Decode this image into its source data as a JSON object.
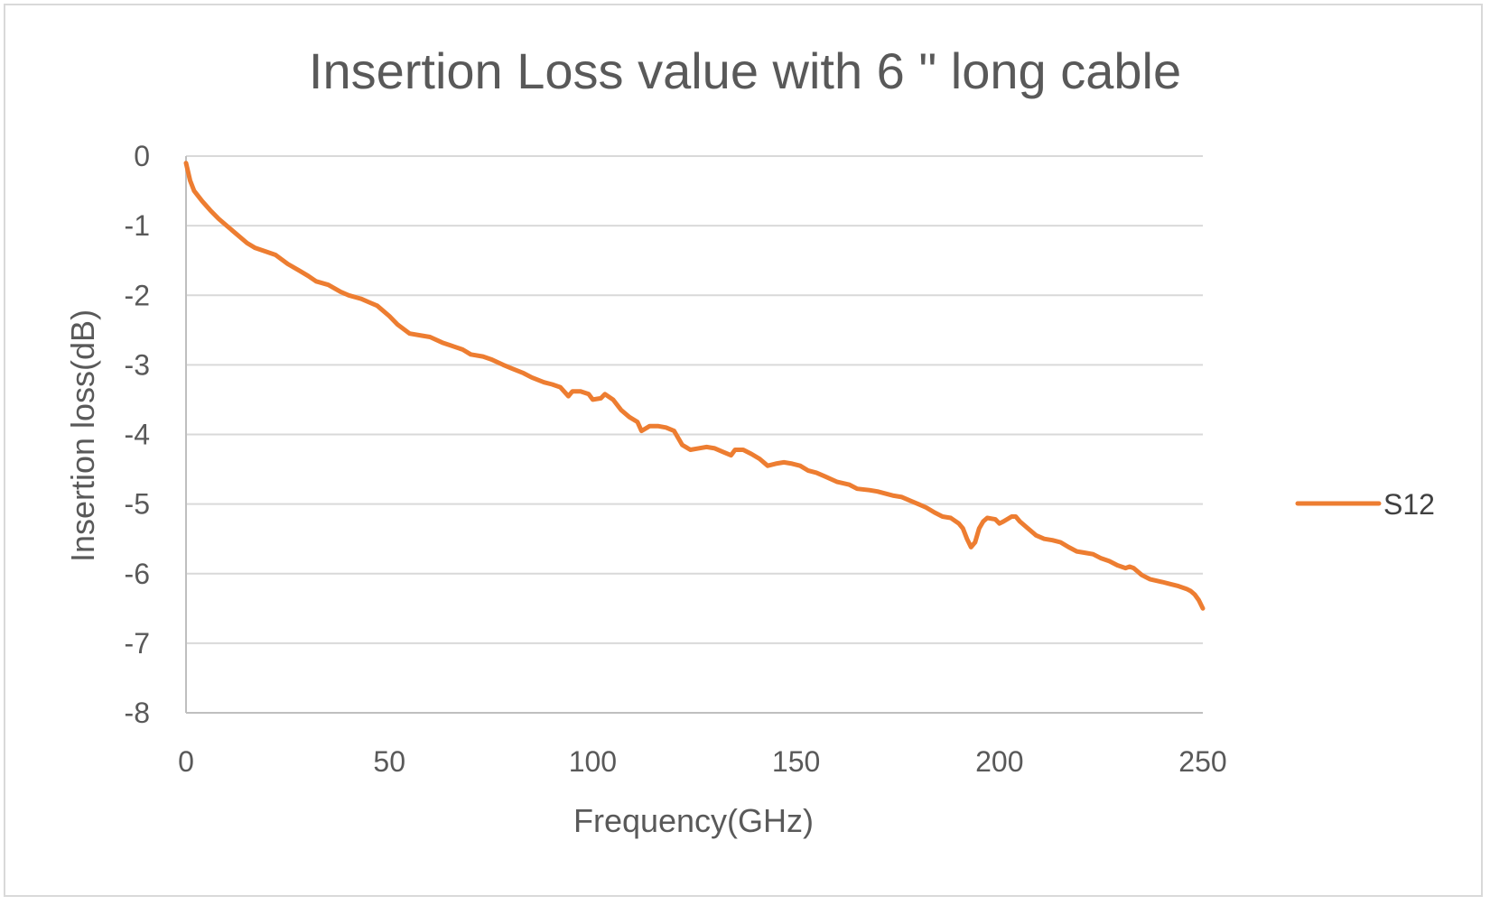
{
  "chart_data": {
    "type": "line",
    "title": "Insertion Loss value with 6 \" long cable",
    "xlabel": "Frequency(GHz)",
    "ylabel": "Insertion loss(dB)",
    "xlim": [
      0,
      250
    ],
    "ylim": [
      -8,
      0
    ],
    "x_ticks": [
      "0",
      "50",
      "100",
      "150",
      "200",
      "250"
    ],
    "y_ticks": [
      "0",
      "-1",
      "-2",
      "-3",
      "-4",
      "-5",
      "-6",
      "-7",
      "-8"
    ],
    "grid": true,
    "legend": "right",
    "series": [
      {
        "name": "S12",
        "color": "#ED7D31",
        "points": [
          [
            0,
            -0.1
          ],
          [
            1,
            -0.35
          ],
          [
            2,
            -0.5
          ],
          [
            4,
            -0.65
          ],
          [
            6,
            -0.78
          ],
          [
            8,
            -0.9
          ],
          [
            10,
            -1.0
          ],
          [
            12,
            -1.1
          ],
          [
            15,
            -1.25
          ],
          [
            17,
            -1.32
          ],
          [
            20,
            -1.38
          ],
          [
            22,
            -1.42
          ],
          [
            25,
            -1.55
          ],
          [
            28,
            -1.65
          ],
          [
            30,
            -1.72
          ],
          [
            32,
            -1.8
          ],
          [
            35,
            -1.85
          ],
          [
            38,
            -1.95
          ],
          [
            40,
            -2.0
          ],
          [
            43,
            -2.05
          ],
          [
            45,
            -2.1
          ],
          [
            47,
            -2.15
          ],
          [
            50,
            -2.3
          ],
          [
            52,
            -2.42
          ],
          [
            55,
            -2.55
          ],
          [
            58,
            -2.58
          ],
          [
            60,
            -2.6
          ],
          [
            63,
            -2.68
          ],
          [
            65,
            -2.72
          ],
          [
            68,
            -2.78
          ],
          [
            70,
            -2.85
          ],
          [
            73,
            -2.88
          ],
          [
            75,
            -2.92
          ],
          [
            78,
            -3.0
          ],
          [
            80,
            -3.05
          ],
          [
            83,
            -3.12
          ],
          [
            85,
            -3.18
          ],
          [
            88,
            -3.25
          ],
          [
            90,
            -3.28
          ],
          [
            92,
            -3.32
          ],
          [
            94,
            -3.45
          ],
          [
            95,
            -3.38
          ],
          [
            97,
            -3.38
          ],
          [
            99,
            -3.42
          ],
          [
            100,
            -3.5
          ],
          [
            102,
            -3.48
          ],
          [
            103,
            -3.42
          ],
          [
            105,
            -3.5
          ],
          [
            107,
            -3.65
          ],
          [
            109,
            -3.75
          ],
          [
            111,
            -3.82
          ],
          [
            112,
            -3.95
          ],
          [
            114,
            -3.88
          ],
          [
            116,
            -3.88
          ],
          [
            118,
            -3.9
          ],
          [
            120,
            -3.95
          ],
          [
            121,
            -4.05
          ],
          [
            122,
            -4.15
          ],
          [
            124,
            -4.22
          ],
          [
            126,
            -4.2
          ],
          [
            128,
            -4.18
          ],
          [
            130,
            -4.2
          ],
          [
            132,
            -4.25
          ],
          [
            134,
            -4.3
          ],
          [
            135,
            -4.22
          ],
          [
            137,
            -4.22
          ],
          [
            139,
            -4.28
          ],
          [
            141,
            -4.35
          ],
          [
            143,
            -4.45
          ],
          [
            145,
            -4.42
          ],
          [
            147,
            -4.4
          ],
          [
            149,
            -4.42
          ],
          [
            151,
            -4.45
          ],
          [
            153,
            -4.52
          ],
          [
            155,
            -4.55
          ],
          [
            157,
            -4.6
          ],
          [
            160,
            -4.68
          ],
          [
            163,
            -4.72
          ],
          [
            165,
            -4.78
          ],
          [
            168,
            -4.8
          ],
          [
            170,
            -4.82
          ],
          [
            172,
            -4.85
          ],
          [
            174,
            -4.88
          ],
          [
            176,
            -4.9
          ],
          [
            178,
            -4.95
          ],
          [
            180,
            -5.0
          ],
          [
            182,
            -5.05
          ],
          [
            184,
            -5.12
          ],
          [
            186,
            -5.18
          ],
          [
            188,
            -5.2
          ],
          [
            190,
            -5.28
          ],
          [
            191,
            -5.35
          ],
          [
            192,
            -5.5
          ],
          [
            193,
            -5.62
          ],
          [
            194,
            -5.55
          ],
          [
            195,
            -5.35
          ],
          [
            196,
            -5.25
          ],
          [
            197,
            -5.2
          ],
          [
            199,
            -5.22
          ],
          [
            200,
            -5.28
          ],
          [
            201,
            -5.25
          ],
          [
            203,
            -5.18
          ],
          [
            204,
            -5.18
          ],
          [
            205,
            -5.25
          ],
          [
            207,
            -5.35
          ],
          [
            209,
            -5.45
          ],
          [
            211,
            -5.5
          ],
          [
            213,
            -5.52
          ],
          [
            215,
            -5.55
          ],
          [
            217,
            -5.62
          ],
          [
            219,
            -5.68
          ],
          [
            221,
            -5.7
          ],
          [
            223,
            -5.72
          ],
          [
            225,
            -5.78
          ],
          [
            227,
            -5.82
          ],
          [
            229,
            -5.88
          ],
          [
            231,
            -5.92
          ],
          [
            232,
            -5.9
          ],
          [
            233,
            -5.92
          ],
          [
            235,
            -6.02
          ],
          [
            237,
            -6.08
          ],
          [
            240,
            -6.12
          ],
          [
            242,
            -6.15
          ],
          [
            244,
            -6.18
          ],
          [
            246,
            -6.22
          ],
          [
            247,
            -6.25
          ],
          [
            248,
            -6.3
          ],
          [
            249,
            -6.38
          ],
          [
            250,
            -6.5
          ]
        ]
      }
    ]
  }
}
